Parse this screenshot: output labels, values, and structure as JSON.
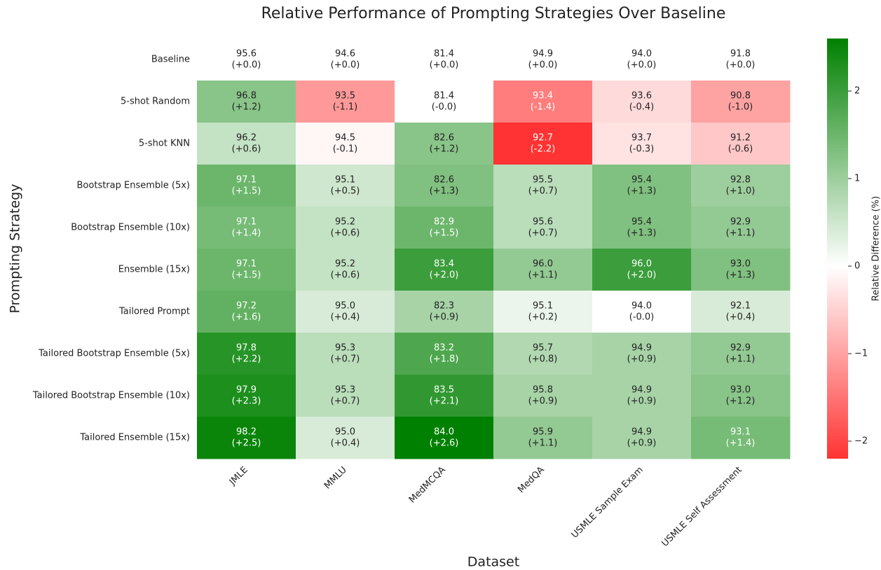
{
  "chart_data": {
    "type": "heatmap",
    "title": "Relative Performance of Prompting Strategies Over Baseline",
    "xlabel": "Dataset",
    "ylabel": "Prompting Strategy",
    "x": [
      "JMLE",
      "MMLU",
      "MedMCQA",
      "MedQA",
      "USMLE Sample Exam",
      "USMLE Self Assessment"
    ],
    "y": [
      "Baseline",
      "5-shot Random",
      "5-shot KNN",
      "Bootstrap Ensemble (5x)",
      "Bootstrap Ensemble (10x)",
      "Ensemble (15x)",
      "Tailored Prompt",
      "Tailored Bootstrap Ensemble (5x)",
      "Tailored Bootstrap Ensemble (10x)",
      "Tailored Ensemble (15x)"
    ],
    "values": [
      [
        95.6,
        94.6,
        81.4,
        94.9,
        94.0,
        91.8
      ],
      [
        96.8,
        93.5,
        81.4,
        93.4,
        93.6,
        90.8
      ],
      [
        96.2,
        94.5,
        82.6,
        92.7,
        93.7,
        91.2
      ],
      [
        97.1,
        95.1,
        82.6,
        95.5,
        95.4,
        92.8
      ],
      [
        97.1,
        95.2,
        82.9,
        95.6,
        95.4,
        92.9
      ],
      [
        97.1,
        95.2,
        83.4,
        96.0,
        96.0,
        93.0
      ],
      [
        97.2,
        95.0,
        82.3,
        95.1,
        94.0,
        92.1
      ],
      [
        97.8,
        95.3,
        83.2,
        95.7,
        94.9,
        92.9
      ],
      [
        97.9,
        95.3,
        83.5,
        95.8,
        94.9,
        93.0
      ],
      [
        98.2,
        95.0,
        84.0,
        95.9,
        94.9,
        93.1
      ]
    ],
    "value_labels": [
      [
        "95.6",
        "94.6",
        "81.4",
        "94.9",
        "94.0",
        "91.8"
      ],
      [
        "96.8",
        "93.5",
        "81.4",
        "93.4",
        "93.6",
        "90.8"
      ],
      [
        "96.2",
        "94.5",
        "82.6",
        "92.7",
        "93.7",
        "91.2"
      ],
      [
        "97.1",
        "95.1",
        "82.6",
        "95.5",
        "95.4",
        "92.8"
      ],
      [
        "97.1",
        "95.2",
        "82.9",
        "95.6",
        "95.4",
        "92.9"
      ],
      [
        "97.1",
        "95.2",
        "83.4",
        "96.0",
        "96.0",
        "93.0"
      ],
      [
        "97.2",
        "95.0",
        "82.3",
        "95.1",
        "94.0",
        "92.1"
      ],
      [
        "97.8",
        "95.3",
        "83.2",
        "95.7",
        "94.9",
        "92.9"
      ],
      [
        "97.9",
        "95.3",
        "83.5",
        "95.8",
        "94.9",
        "93.0"
      ],
      [
        "98.2",
        "95.0",
        "84.0",
        "95.9",
        "94.9",
        "93.1"
      ]
    ],
    "diff": [
      [
        0,
        0,
        0,
        0,
        0,
        0
      ],
      [
        1.2,
        -1.1,
        0,
        -1.4,
        -0.4,
        -1.0
      ],
      [
        0.6,
        -0.1,
        1.2,
        -2.2,
        -0.3,
        -0.6
      ],
      [
        1.5,
        0.5,
        1.3,
        0.7,
        1.3,
        1.0
      ],
      [
        1.4,
        0.6,
        1.5,
        0.7,
        1.3,
        1.1
      ],
      [
        1.5,
        0.6,
        2.0,
        1.1,
        2.0,
        1.3
      ],
      [
        1.6,
        0.4,
        0.9,
        0.2,
        0,
        0.4
      ],
      [
        2.2,
        0.7,
        1.8,
        0.8,
        0.9,
        1.1
      ],
      [
        2.3,
        0.7,
        2.1,
        0.9,
        0.9,
        1.2
      ],
      [
        2.5,
        0.4,
        2.6,
        1.1,
        0.9,
        1.4
      ]
    ],
    "diff_labels": [
      [
        "(+0.0)",
        "(+0.0)",
        "(+0.0)",
        "(+0.0)",
        "(+0.0)",
        "(+0.0)"
      ],
      [
        "(+1.2)",
        "(-1.1)",
        "(-0.0)",
        "(-1.4)",
        "(-0.4)",
        "(-1.0)"
      ],
      [
        "(+0.6)",
        "(-0.1)",
        "(+1.2)",
        "(-2.2)",
        "(-0.3)",
        "(-0.6)"
      ],
      [
        "(+1.5)",
        "(+0.5)",
        "(+1.3)",
        "(+0.7)",
        "(+1.3)",
        "(+1.0)"
      ],
      [
        "(+1.4)",
        "(+0.6)",
        "(+1.5)",
        "(+0.7)",
        "(+1.3)",
        "(+1.1)"
      ],
      [
        "(+1.5)",
        "(+0.6)",
        "(+2.0)",
        "(+1.1)",
        "(+2.0)",
        "(+1.3)"
      ],
      [
        "(+1.6)",
        "(+0.4)",
        "(+0.9)",
        "(+0.2)",
        "(-0.0)",
        "(+0.4)"
      ],
      [
        "(+2.2)",
        "(+0.7)",
        "(+1.8)",
        "(+0.8)",
        "(+0.9)",
        "(+1.1)"
      ],
      [
        "(+2.3)",
        "(+0.7)",
        "(+2.1)",
        "(+0.9)",
        "(+0.9)",
        "(+1.2)"
      ],
      [
        "(+2.5)",
        "(+0.4)",
        "(+2.6)",
        "(+1.1)",
        "(+0.9)",
        "(+1.4)"
      ]
    ],
    "colorbar_label": "Relative Difference (%)",
    "clim": [
      -2.2,
      2.6
    ],
    "cticks": [
      {
        "value": -2,
        "label": "−2"
      },
      {
        "value": -1,
        "label": "−1"
      },
      0,
      1,
      2
    ],
    "cmap": [
      "#ff3333",
      "#ffffff",
      "#008000"
    ]
  }
}
